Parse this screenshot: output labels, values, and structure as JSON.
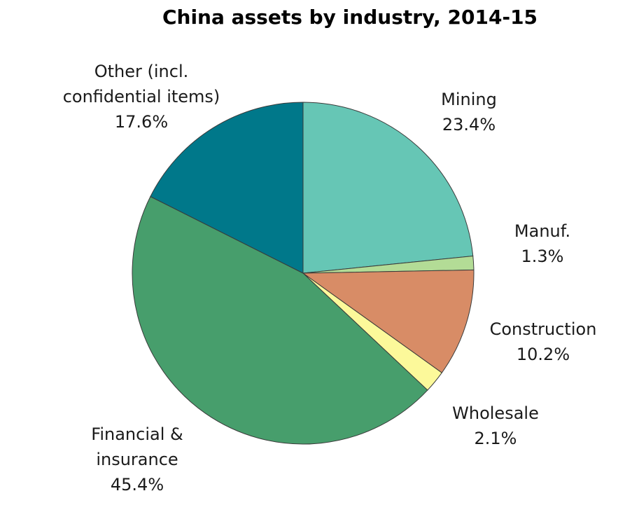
{
  "chart_data": {
    "type": "pie",
    "title": "China assets by industry, 2014-15",
    "start_angle_deg": 0,
    "direction": "clockwise",
    "slices": [
      {
        "label": [
          "Mining"
        ],
        "value": 23.4,
        "value_label": "23.4%",
        "color": "#66c6b5"
      },
      {
        "label": [
          "Manuf."
        ],
        "value": 1.3,
        "value_label": "1.3%",
        "color": "#b3dc96"
      },
      {
        "label": [
          "Construction"
        ],
        "value": 10.2,
        "value_label": "10.2%",
        "color": "#d88c66"
      },
      {
        "label": [
          "Wholesale"
        ],
        "value": 2.1,
        "value_label": "2.1%",
        "color": "#fcf99a"
      },
      {
        "label": [
          "Financial &",
          "insurance"
        ],
        "value": 45.4,
        "value_label": "45.4%",
        "color": "#479e6c"
      },
      {
        "label": [
          "Other (incl.",
          "confidential items)"
        ],
        "value": 17.6,
        "value_label": "17.6%",
        "color": "#00788a"
      }
    ]
  }
}
